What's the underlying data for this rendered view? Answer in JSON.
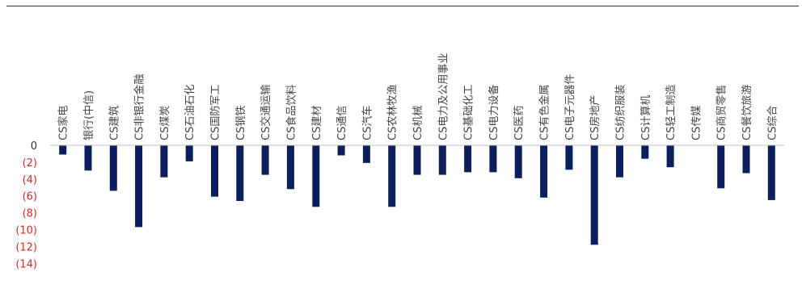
{
  "chart_data": {
    "type": "bar",
    "title": "",
    "xlabel": "",
    "ylabel": "",
    "ylim": [
      -14,
      0
    ],
    "yticks": [
      {
        "value": 0,
        "label": "0"
      },
      {
        "value": -2,
        "label": "(2)"
      },
      {
        "value": -4,
        "label": "(4)"
      },
      {
        "value": -6,
        "label": "(6)"
      },
      {
        "value": -8,
        "label": "(8)"
      },
      {
        "value": -10,
        "label": "(10)"
      },
      {
        "value": -12,
        "label": "(12)"
      },
      {
        "value": -14,
        "label": "(14)"
      }
    ],
    "categories": [
      "CS家电",
      "银行(中信)",
      "CS建筑",
      "CS非银行金融",
      "CS煤炭",
      "CS石油石化",
      "CS国防军工",
      "CS钢铁",
      "CS交通运输",
      "CS食品饮料",
      "CS建材",
      "CS通信",
      "CS汽车",
      "CS农林牧渔",
      "CS机械",
      "CS电力及公用事业",
      "CS基础化工",
      "CS电力设备",
      "CS医药",
      "CS有色金属",
      "CS电子元器件",
      "CS房地产",
      "CS纺织服装",
      "CS计算机",
      "CS轻工制造",
      "CS传媒",
      "CS商贸零售",
      "CS餐饮旅游",
      "CS综合"
    ],
    "values": [
      -1.1,
      -3.0,
      -5.4,
      -9.7,
      -3.8,
      -1.9,
      -6.1,
      -6.6,
      -3.5,
      -5.2,
      -7.3,
      -1.2,
      -2.1,
      -7.3,
      -3.5,
      -3.5,
      -3.2,
      -3.2,
      -3.9,
      -6.2,
      -2.9,
      -11.8,
      -3.8,
      -1.6,
      -2.6,
      0.0,
      -5.1,
      -3.3,
      -6.5
    ],
    "grid": false,
    "legend": "none",
    "colors": {
      "bar": "#0b1f5c",
      "negative_tick": "#d42a2a",
      "zero_tick": "#333333",
      "axis": "#bfbfbf",
      "label": "#444444"
    }
  }
}
